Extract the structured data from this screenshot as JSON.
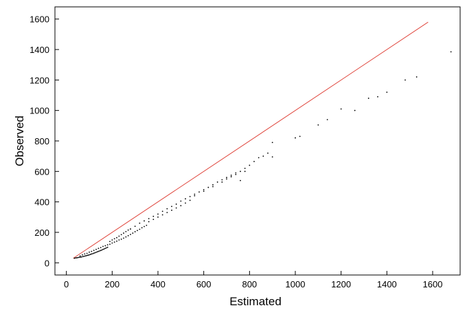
{
  "chart_data": {
    "type": "scatter",
    "title": "",
    "xlabel": "Estimated",
    "ylabel": "Observed",
    "xlim": [
      -50,
      1720
    ],
    "ylim": [
      -80,
      1680
    ],
    "xticks": [
      0,
      200,
      400,
      600,
      800,
      1000,
      1200,
      1400,
      1600
    ],
    "yticks": [
      0,
      200,
      400,
      600,
      800,
      1000,
      1200,
      1400,
      1600
    ],
    "grid": false,
    "legend": "none",
    "reference_line": {
      "x": [
        30,
        1580
      ],
      "y": [
        30,
        1580
      ],
      "color": "#e0473e"
    },
    "point_color": "#000000",
    "points": [
      [
        35,
        30
      ],
      [
        40,
        32
      ],
      [
        45,
        33
      ],
      [
        50,
        34
      ],
      [
        55,
        36
      ],
      [
        60,
        37
      ],
      [
        65,
        38
      ],
      [
        70,
        40
      ],
      [
        75,
        42
      ],
      [
        80,
        44
      ],
      [
        85,
        46
      ],
      [
        90,
        48
      ],
      [
        95,
        50
      ],
      [
        100,
        52
      ],
      [
        105,
        55
      ],
      [
        110,
        58
      ],
      [
        115,
        60
      ],
      [
        120,
        63
      ],
      [
        125,
        66
      ],
      [
        130,
        69
      ],
      [
        135,
        72
      ],
      [
        140,
        75
      ],
      [
        145,
        78
      ],
      [
        150,
        81
      ],
      [
        155,
        84
      ],
      [
        160,
        88
      ],
      [
        165,
        91
      ],
      [
        170,
        95
      ],
      [
        175,
        98
      ],
      [
        180,
        102
      ],
      [
        60,
        45
      ],
      [
        70,
        52
      ],
      [
        80,
        58
      ],
      [
        90,
        62
      ],
      [
        100,
        70
      ],
      [
        110,
        75
      ],
      [
        120,
        82
      ],
      [
        130,
        88
      ],
      [
        140,
        95
      ],
      [
        150,
        100
      ],
      [
        160,
        108
      ],
      [
        170,
        112
      ],
      [
        180,
        118
      ],
      [
        190,
        122
      ],
      [
        200,
        130
      ],
      [
        210,
        136
      ],
      [
        220,
        142
      ],
      [
        230,
        150
      ],
      [
        240,
        155
      ],
      [
        250,
        162
      ],
      [
        260,
        170
      ],
      [
        270,
        178
      ],
      [
        280,
        186
      ],
      [
        290,
        195
      ],
      [
        300,
        204
      ],
      [
        310,
        212
      ],
      [
        320,
        220
      ],
      [
        330,
        230
      ],
      [
        340,
        238
      ],
      [
        350,
        246
      ],
      [
        190,
        140
      ],
      [
        200,
        150
      ],
      [
        210,
        158
      ],
      [
        220,
        165
      ],
      [
        230,
        175
      ],
      [
        240,
        185
      ],
      [
        250,
        195
      ],
      [
        260,
        205
      ],
      [
        270,
        215
      ],
      [
        280,
        222
      ],
      [
        300,
        240
      ],
      [
        320,
        260
      ],
      [
        340,
        275
      ],
      [
        360,
        290
      ],
      [
        380,
        305
      ],
      [
        400,
        320
      ],
      [
        420,
        338
      ],
      [
        440,
        355
      ],
      [
        460,
        370
      ],
      [
        480,
        385
      ],
      [
        360,
        270
      ],
      [
        380,
        285
      ],
      [
        400,
        300
      ],
      [
        420,
        315
      ],
      [
        440,
        330
      ],
      [
        460,
        345
      ],
      [
        480,
        360
      ],
      [
        500,
        375
      ],
      [
        520,
        392
      ],
      [
        540,
        410
      ],
      [
        500,
        405
      ],
      [
        520,
        420
      ],
      [
        540,
        435
      ],
      [
        560,
        450
      ],
      [
        580,
        465
      ],
      [
        600,
        480
      ],
      [
        620,
        495
      ],
      [
        640,
        512
      ],
      [
        660,
        530
      ],
      [
        680,
        545
      ],
      [
        560,
        440
      ],
      [
        600,
        470
      ],
      [
        640,
        500
      ],
      [
        680,
        530
      ],
      [
        700,
        550
      ],
      [
        720,
        565
      ],
      [
        740,
        580
      ],
      [
        760,
        600
      ],
      [
        780,
        620
      ],
      [
        800,
        640
      ],
      [
        700,
        560
      ],
      [
        720,
        575
      ],
      [
        740,
        590
      ],
      [
        760,
        540
      ],
      [
        780,
        600
      ],
      [
        820,
        665
      ],
      [
        840,
        690
      ],
      [
        860,
        700
      ],
      [
        880,
        720
      ],
      [
        900,
        695
      ],
      [
        900,
        790
      ],
      [
        1000,
        820
      ],
      [
        1020,
        830
      ],
      [
        1100,
        905
      ],
      [
        1140,
        940
      ],
      [
        1200,
        1010
      ],
      [
        1260,
        1000
      ],
      [
        1320,
        1080
      ],
      [
        1360,
        1090
      ],
      [
        1400,
        1120
      ],
      [
        1480,
        1200
      ],
      [
        1530,
        1220
      ],
      [
        1680,
        1385
      ]
    ]
  }
}
